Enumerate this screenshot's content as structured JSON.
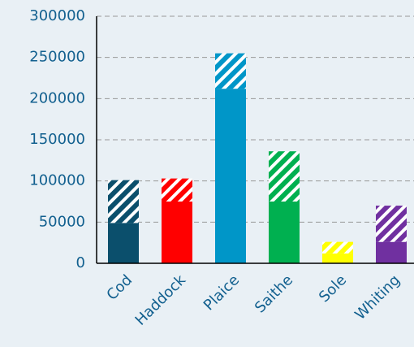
{
  "chart_data": {
    "type": "stacked_bar",
    "categories": [
      "Cod",
      "Haddock",
      "Plaice",
      "Saithe",
      "Sole",
      "Whiting"
    ],
    "colors": [
      "#0b4f6c",
      "#ff0000",
      "#0096c8",
      "#00b050",
      "#ffff00",
      "#7030a0"
    ],
    "series": [
      {
        "pattern": "solid",
        "values": [
          49000,
          75000,
          212000,
          75000,
          12000,
          26000
        ]
      },
      {
        "pattern": "hatch",
        "values": [
          52000,
          28000,
          43000,
          61000,
          14000,
          44000
        ]
      }
    ],
    "ylim": [
      0,
      300000
    ],
    "yticks": [
      0,
      50000,
      100000,
      150000,
      200000,
      250000,
      300000
    ],
    "grid": true
  }
}
